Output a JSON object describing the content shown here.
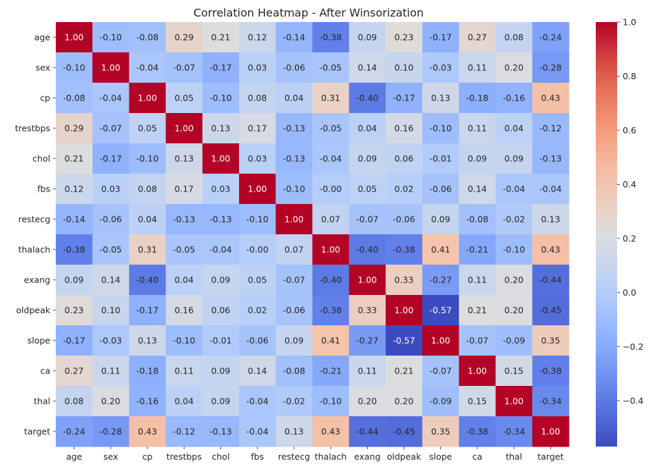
{
  "chart_data": {
    "type": "heatmap",
    "title": "Correlation Heatmap - After Winsorization",
    "xlabel": "",
    "ylabel": "",
    "categories": [
      "age",
      "sex",
      "cp",
      "trestbps",
      "chol",
      "fbs",
      "restecg",
      "thalach",
      "exang",
      "oldpeak",
      "slope",
      "ca",
      "thal",
      "target"
    ],
    "values": [
      [
        1.0,
        -0.1,
        -0.08,
        0.29,
        0.21,
        0.12,
        -0.14,
        -0.38,
        0.09,
        0.23,
        -0.17,
        0.27,
        0.08,
        -0.24
      ],
      [
        -0.1,
        1.0,
        -0.04,
        -0.07,
        -0.17,
        0.03,
        -0.06,
        -0.05,
        0.14,
        0.1,
        -0.03,
        0.11,
        0.2,
        -0.28
      ],
      [
        -0.08,
        -0.04,
        1.0,
        0.05,
        -0.1,
        0.08,
        0.04,
        0.31,
        -0.4,
        -0.17,
        0.13,
        -0.18,
        -0.16,
        0.43
      ],
      [
        0.29,
        -0.07,
        0.05,
        1.0,
        0.13,
        0.17,
        -0.13,
        -0.05,
        0.04,
        0.16,
        -0.1,
        0.11,
        0.04,
        -0.12
      ],
      [
        0.21,
        -0.17,
        -0.1,
        0.13,
        1.0,
        0.03,
        -0.13,
        -0.04,
        0.09,
        0.06,
        -0.01,
        0.09,
        0.09,
        -0.13
      ],
      [
        0.12,
        0.03,
        0.08,
        0.17,
        0.03,
        1.0,
        -0.1,
        -0.0,
        0.05,
        0.02,
        -0.06,
        0.14,
        -0.04,
        -0.04
      ],
      [
        -0.14,
        -0.06,
        0.04,
        -0.13,
        -0.13,
        -0.1,
        1.0,
        0.07,
        -0.07,
        -0.06,
        0.09,
        -0.08,
        -0.02,
        0.13
      ],
      [
        -0.38,
        -0.05,
        0.31,
        -0.05,
        -0.04,
        -0.0,
        0.07,
        1.0,
        -0.4,
        -0.38,
        0.41,
        -0.21,
        -0.1,
        0.43
      ],
      [
        0.09,
        0.14,
        -0.4,
        0.04,
        0.09,
        0.05,
        -0.07,
        -0.4,
        1.0,
        0.33,
        -0.27,
        0.11,
        0.2,
        -0.44
      ],
      [
        0.23,
        0.1,
        -0.17,
        0.16,
        0.06,
        0.02,
        -0.06,
        -0.38,
        0.33,
        1.0,
        -0.57,
        0.21,
        0.2,
        -0.45
      ],
      [
        -0.17,
        -0.03,
        0.13,
        -0.1,
        -0.01,
        -0.06,
        0.09,
        0.41,
        -0.27,
        -0.57,
        1.0,
        -0.07,
        -0.09,
        0.35
      ],
      [
        0.27,
        0.11,
        -0.18,
        0.11,
        0.09,
        0.14,
        -0.08,
        -0.21,
        0.11,
        0.21,
        -0.07,
        1.0,
        0.15,
        -0.38
      ],
      [
        0.08,
        0.2,
        -0.16,
        0.04,
        0.09,
        -0.04,
        -0.02,
        -0.1,
        0.2,
        0.2,
        -0.09,
        0.15,
        1.0,
        -0.34
      ],
      [
        -0.24,
        -0.28,
        0.43,
        -0.12,
        -0.13,
        -0.04,
        0.13,
        0.43,
        -0.44,
        -0.45,
        0.35,
        -0.38,
        -0.34,
        1.0
      ]
    ],
    "value_labels": [
      [
        "1.00",
        "-0.10",
        "-0.08",
        "0.29",
        "0.21",
        "0.12",
        "-0.14",
        "-0.38",
        "0.09",
        "0.23",
        "-0.17",
        "0.27",
        "0.08",
        "-0.24"
      ],
      [
        "-0.10",
        "1.00",
        "-0.04",
        "-0.07",
        "-0.17",
        "0.03",
        "-0.06",
        "-0.05",
        "0.14",
        "0.10",
        "-0.03",
        "0.11",
        "0.20",
        "-0.28"
      ],
      [
        "-0.08",
        "-0.04",
        "1.00",
        "0.05",
        "-0.10",
        "0.08",
        "0.04",
        "0.31",
        "-0.40",
        "-0.17",
        "0.13",
        "-0.18",
        "-0.16",
        "0.43"
      ],
      [
        "0.29",
        "-0.07",
        "0.05",
        "1.00",
        "0.13",
        "0.17",
        "-0.13",
        "-0.05",
        "0.04",
        "0.16",
        "-0.10",
        "0.11",
        "0.04",
        "-0.12"
      ],
      [
        "0.21",
        "-0.17",
        "-0.10",
        "0.13",
        "1.00",
        "0.03",
        "-0.13",
        "-0.04",
        "0.09",
        "0.06",
        "-0.01",
        "0.09",
        "0.09",
        "-0.13"
      ],
      [
        "0.12",
        "0.03",
        "0.08",
        "0.17",
        "0.03",
        "1.00",
        "-0.10",
        "-0.00",
        "0.05",
        "0.02",
        "-0.06",
        "0.14",
        "-0.04",
        "-0.04"
      ],
      [
        "-0.14",
        "-0.06",
        "0.04",
        "-0.13",
        "-0.13",
        "-0.10",
        "1.00",
        "0.07",
        "-0.07",
        "-0.06",
        "0.09",
        "-0.08",
        "-0.02",
        "0.13"
      ],
      [
        "-0.38",
        "-0.05",
        "0.31",
        "-0.05",
        "-0.04",
        "-0.00",
        "0.07",
        "1.00",
        "-0.40",
        "-0.38",
        "0.41",
        "-0.21",
        "-0.10",
        "0.43"
      ],
      [
        "0.09",
        "0.14",
        "-0.40",
        "0.04",
        "0.09",
        "0.05",
        "-0.07",
        "-0.40",
        "1.00",
        "0.33",
        "-0.27",
        "0.11",
        "0.20",
        "-0.44"
      ],
      [
        "0.23",
        "0.10",
        "-0.17",
        "0.16",
        "0.06",
        "0.02",
        "-0.06",
        "-0.38",
        "0.33",
        "1.00",
        "-0.57",
        "0.21",
        "0.20",
        "-0.45"
      ],
      [
        "-0.17",
        "-0.03",
        "0.13",
        "-0.10",
        "-0.01",
        "-0.06",
        "0.09",
        "0.41",
        "-0.27",
        "-0.57",
        "1.00",
        "-0.07",
        "-0.09",
        "0.35"
      ],
      [
        "0.27",
        "0.11",
        "-0.18",
        "0.11",
        "0.09",
        "0.14",
        "-0.08",
        "-0.21",
        "0.11",
        "0.21",
        "-0.07",
        "1.00",
        "0.15",
        "-0.38"
      ],
      [
        "0.08",
        "0.20",
        "-0.16",
        "0.04",
        "0.09",
        "-0.04",
        "-0.02",
        "-0.10",
        "0.20",
        "0.20",
        "-0.09",
        "0.15",
        "1.00",
        "-0.34"
      ],
      [
        "-0.24",
        "-0.28",
        "0.43",
        "-0.12",
        "-0.13",
        "-0.04",
        "0.13",
        "0.43",
        "-0.44",
        "-0.45",
        "0.35",
        "-0.38",
        "-0.34",
        "1.00"
      ]
    ],
    "colormap": "coolwarm",
    "vmin": -0.57,
    "vmax": 1.0,
    "colorbar_ticks": [
      -0.4,
      -0.2,
      0.0,
      0.2,
      0.4,
      0.6,
      0.8,
      1.0
    ],
    "colorbar_tick_labels": [
      "−0.4",
      "−0.2",
      "0.0",
      "0.2",
      "0.4",
      "0.6",
      "0.8",
      "1.0"
    ],
    "legend": "colorbar-right",
    "grid": false
  }
}
